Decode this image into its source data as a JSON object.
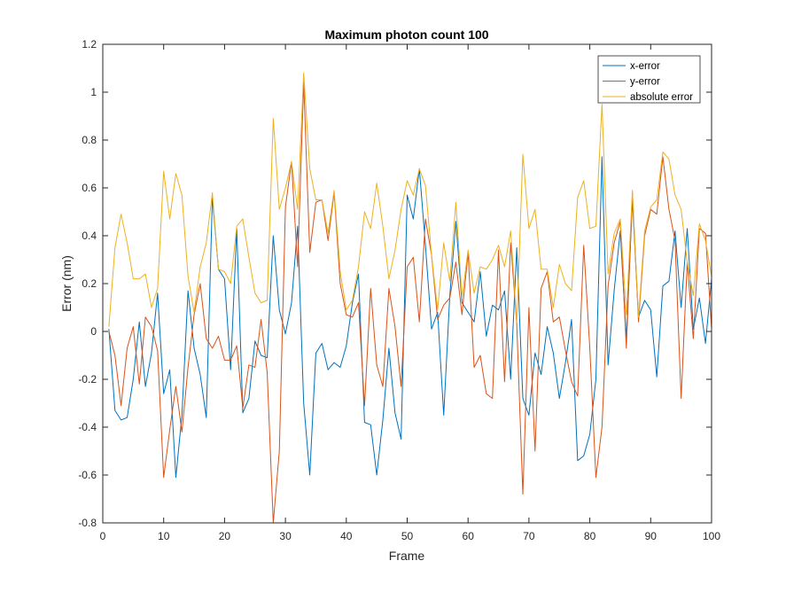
{
  "figure": {
    "background": "#ffffff"
  },
  "chart_data": {
    "type": "line",
    "title": "Maximum photon count 100",
    "xlabel": "Frame",
    "ylabel": "Error (nm)",
    "xlim": [
      0,
      100
    ],
    "ylim": [
      -0.8,
      1.2
    ],
    "xticks": [
      0,
      10,
      20,
      30,
      40,
      50,
      60,
      70,
      80,
      90,
      100
    ],
    "yticks": [
      -0.8,
      -0.6,
      -0.4,
      -0.2,
      0,
      0.2,
      0.4,
      0.6,
      0.8,
      1,
      1.2
    ],
    "xtick_labels": [
      "0",
      "10",
      "20",
      "30",
      "40",
      "50",
      "60",
      "70",
      "80",
      "90",
      "100"
    ],
    "ytick_labels": [
      "-0.8",
      "-0.6",
      "-0.4",
      "-0.2",
      "0",
      "0.2",
      "0.4",
      "0.6",
      "0.8",
      "1",
      "1.2"
    ],
    "grid": false,
    "legend_position": "top-right",
    "x": [
      1,
      2,
      3,
      4,
      5,
      6,
      7,
      8,
      9,
      10,
      11,
      12,
      13,
      14,
      15,
      16,
      17,
      18,
      19,
      20,
      21,
      22,
      23,
      24,
      25,
      26,
      27,
      28,
      29,
      30,
      31,
      32,
      33,
      34,
      35,
      36,
      37,
      38,
      39,
      40,
      41,
      42,
      43,
      44,
      45,
      46,
      47,
      48,
      49,
      50,
      51,
      52,
      53,
      54,
      55,
      56,
      57,
      58,
      59,
      60,
      61,
      62,
      63,
      64,
      65,
      66,
      67,
      68,
      69,
      70,
      71,
      72,
      73,
      74,
      75,
      76,
      77,
      78,
      79,
      80,
      81,
      82,
      83,
      84,
      85,
      86,
      87,
      88,
      89,
      90,
      91,
      92,
      93,
      94,
      95,
      96,
      97,
      98,
      99,
      100
    ],
    "series": [
      {
        "name": "x-error",
        "color": "#0072BD",
        "values": [
          0.01,
          -0.33,
          -0.37,
          -0.36,
          -0.2,
          0.04,
          -0.23,
          -0.09,
          0.16,
          -0.26,
          -0.16,
          -0.61,
          -0.35,
          0.17,
          -0.07,
          -0.18,
          -0.36,
          0.56,
          0.26,
          0.22,
          -0.16,
          0.43,
          -0.34,
          -0.28,
          -0.04,
          -0.1,
          -0.11,
          0.4,
          0.09,
          -0.01,
          0.12,
          0.44,
          -0.3,
          -0.6,
          -0.09,
          -0.05,
          -0.16,
          -0.13,
          -0.15,
          -0.06,
          0.12,
          0.24,
          -0.38,
          -0.39,
          -0.6,
          -0.37,
          -0.07,
          -0.34,
          -0.45,
          0.57,
          0.47,
          0.68,
          0.36,
          0.01,
          0.08,
          -0.35,
          0.15,
          0.46,
          0.12,
          0.08,
          0.04,
          0.25,
          -0.02,
          0.11,
          0.09,
          0.17,
          -0.2,
          0.35,
          -0.28,
          -0.35,
          -0.09,
          -0.18,
          0.02,
          -0.09,
          -0.28,
          -0.13,
          0.05,
          -0.54,
          -0.52,
          -0.43,
          -0.2,
          0.73,
          -0.14,
          0.17,
          0.42,
          -0.03,
          0.55,
          0.06,
          0.13,
          0.09,
          -0.19,
          0.19,
          0.21,
          0.42,
          0.1,
          0.43,
          0.01,
          0.14,
          -0.05,
          0.22
        ]
      },
      {
        "name": "y-error",
        "color": "#D95319",
        "values": [
          0.0,
          -0.1,
          -0.31,
          -0.07,
          0.02,
          -0.22,
          0.06,
          0.02,
          -0.08,
          -0.61,
          -0.41,
          -0.23,
          -0.42,
          -0.15,
          0.07,
          0.2,
          -0.03,
          -0.07,
          -0.02,
          -0.12,
          -0.12,
          -0.06,
          -0.32,
          -0.14,
          -0.15,
          0.05,
          -0.17,
          -0.8,
          -0.5,
          0.52,
          0.71,
          0.27,
          1.04,
          0.33,
          0.54,
          0.55,
          0.38,
          0.58,
          0.2,
          0.07,
          0.06,
          0.12,
          -0.31,
          0.18,
          -0.14,
          -0.23,
          0.18,
          0.02,
          -0.23,
          0.27,
          0.31,
          0.04,
          0.47,
          0.32,
          0.05,
          0.11,
          0.14,
          0.29,
          0.07,
          0.33,
          -0.15,
          -0.1,
          -0.26,
          -0.28,
          0.34,
          -0.21,
          0.37,
          0.03,
          -0.68,
          0.1,
          -0.5,
          0.18,
          0.25,
          0.04,
          0.06,
          -0.08,
          -0.21,
          -0.27,
          0.36,
          -0.07,
          -0.61,
          -0.4,
          0.19,
          0.37,
          0.46,
          -0.07,
          0.58,
          0.04,
          0.4,
          0.51,
          0.49,
          0.73,
          0.51,
          0.38,
          -0.28,
          0.29,
          -0.03,
          0.43,
          0.41,
          0.01
        ]
      },
      {
        "name": "absolute error",
        "color": "#EDB120",
        "values": [
          0.02,
          0.35,
          0.49,
          0.37,
          0.22,
          0.22,
          0.24,
          0.1,
          0.18,
          0.67,
          0.47,
          0.66,
          0.57,
          0.23,
          0.08,
          0.27,
          0.37,
          0.58,
          0.26,
          0.25,
          0.2,
          0.44,
          0.47,
          0.31,
          0.16,
          0.12,
          0.13,
          0.89,
          0.51,
          0.6,
          0.71,
          0.51,
          1.08,
          0.68,
          0.55,
          0.55,
          0.41,
          0.59,
          0.25,
          0.09,
          0.13,
          0.27,
          0.5,
          0.43,
          0.62,
          0.44,
          0.22,
          0.34,
          0.51,
          0.63,
          0.57,
          0.68,
          0.61,
          0.32,
          0.09,
          0.37,
          0.21,
          0.54,
          0.14,
          0.34,
          0.16,
          0.27,
          0.26,
          0.3,
          0.36,
          0.27,
          0.42,
          0.04,
          0.74,
          0.43,
          0.51,
          0.26,
          0.26,
          0.1,
          0.28,
          0.2,
          0.17,
          0.56,
          0.63,
          0.43,
          0.44,
          0.95,
          0.24,
          0.41,
          0.47,
          0.07,
          0.59,
          0.06,
          0.42,
          0.52,
          0.55,
          0.75,
          0.72,
          0.57,
          0.51,
          0.29,
          0.15,
          0.45,
          0.38,
          0.23
        ]
      }
    ]
  }
}
